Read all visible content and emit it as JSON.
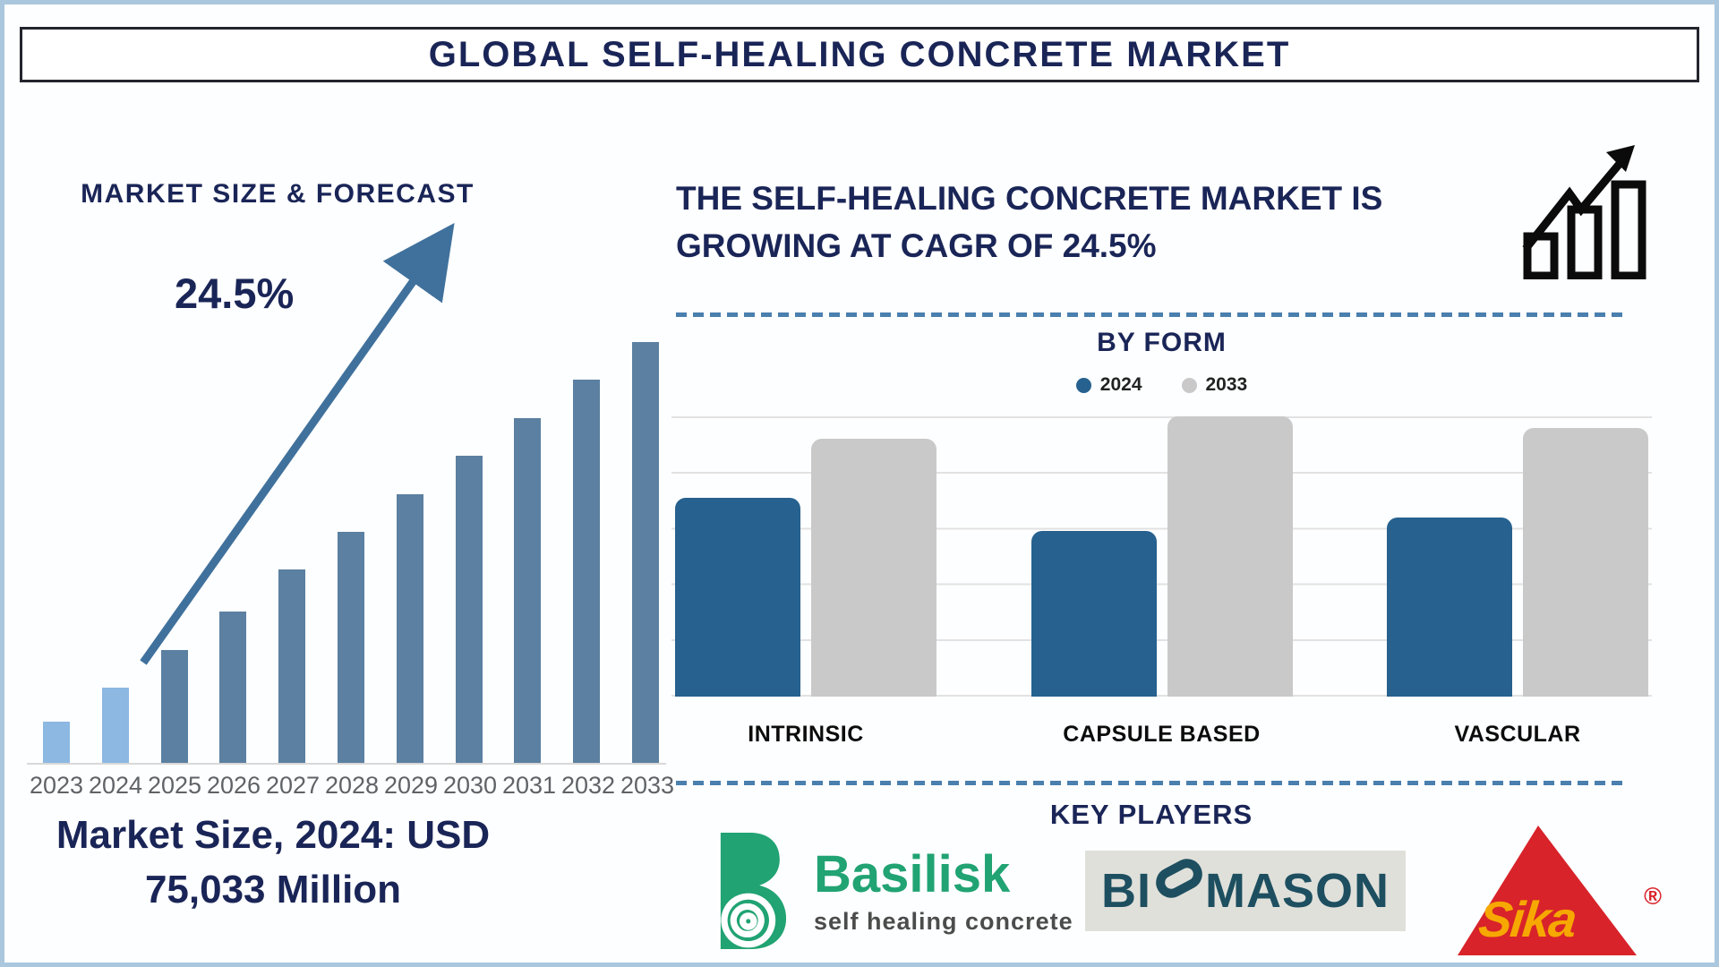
{
  "page": {
    "title": "GLOBAL SELF-HEALING CONCRETE MARKET"
  },
  "left_panel": {
    "heading": "MARKET SIZE & FORECAST",
    "cagr_label": "24.5%",
    "caption_line1": "Market Size, 2024: USD",
    "caption_line2": "75,033 Million"
  },
  "right_panel": {
    "headline_line1": "THE SELF-HEALING CONCRETE MARKET IS",
    "headline_line2": "GROWING AT CAGR OF 24.5%",
    "by_form": {
      "title": "BY FORM"
    },
    "key_players": {
      "title": "KEY PLAYERS",
      "players": [
        {
          "name": "Basilisk",
          "tagline": "self healing concrete"
        },
        {
          "name": "BIOMASON",
          "left": "BI",
          "right": "MASON"
        },
        {
          "name": "Sika",
          "registered": "®"
        }
      ]
    }
  },
  "icons": [
    "growth-bar-chart-icon",
    "trend-arrow-icon",
    "basilisk-spiral-b-icon",
    "biomason-capsule-o-icon",
    "sika-triangle-icon"
  ],
  "colors": {
    "navy": "#1a2557",
    "forecast_bar": "#5b80a1",
    "forecast_bar_highlight": "#8cb8e2",
    "arrow": "#40719c",
    "year_label": "#5f6367",
    "series_blue": "#26618f",
    "series_gray": "#c9c9c9",
    "gridline": "#e2e2e2",
    "dashed_divider": "#4a7fae",
    "basilisk_green": "#21a373",
    "biomason_teal": "#1d4f60",
    "biomason_bg": "#e0e0da",
    "sika_red": "#d8232a",
    "sika_yellow": "#f6a800"
  },
  "chart_data": [
    {
      "type": "bar",
      "title": "MARKET SIZE & FORECAST",
      "categories": [
        "2023",
        "2024",
        "2025",
        "2026",
        "2027",
        "2028",
        "2029",
        "2030",
        "2031",
        "2032",
        "2033"
      ],
      "values_pct_of_max": [
        10,
        18,
        27,
        36,
        46,
        55,
        64,
        73,
        82,
        91,
        100
      ],
      "highlight_indices": [
        0,
        1
      ],
      "xlabel": "",
      "ylabel": "",
      "yaxis_ticks": "none (pictographic bars, relative heights estimated vs tallest 2033 bar)",
      "grid": false,
      "annotations": [
        "24.5% CAGR with upward trend arrow",
        "Market Size, 2024: USD 75,033 Million"
      ]
    },
    {
      "type": "bar",
      "title": "BY FORM",
      "categories": [
        "INTRINSIC",
        "CAPSULE BASED",
        "VASCULAR"
      ],
      "series": [
        {
          "name": "2024",
          "color": "#26618f",
          "values_pct_of_plot": [
            71,
            59,
            64
          ]
        },
        {
          "name": "2033",
          "color": "#c9c9c9",
          "values_pct_of_plot": [
            92,
            100,
            96
          ]
        }
      ],
      "legend_position": "top-center",
      "grid": true,
      "yaxis_ticks": "none (values estimated as % of plot height vs gridlines)"
    }
  ]
}
